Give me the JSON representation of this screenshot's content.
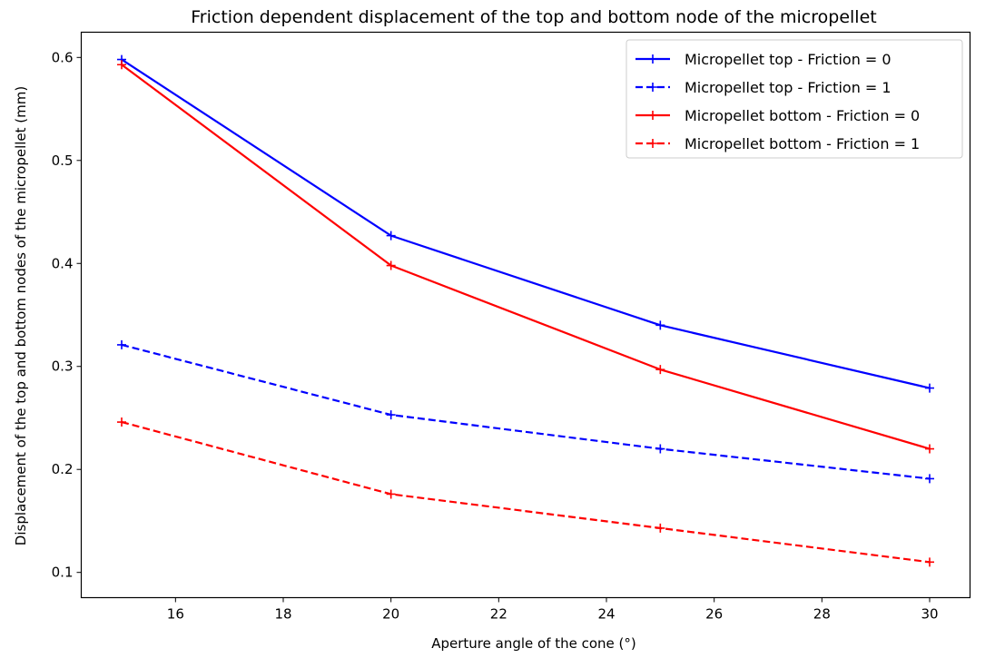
{
  "chart_data": {
    "type": "line",
    "title": "Friction dependent displacement of the top and bottom node of the micropellet",
    "xlabel": "Aperture angle of the cone (°)",
    "ylabel": "Displacement of the top and bottom nodes of the micropellet (mm)",
    "x": [
      15,
      20,
      25,
      30
    ],
    "xlim": [
      14.25,
      30.75
    ],
    "ylim": [
      0.0755,
      0.6245
    ],
    "xticks": [
      "16",
      "18",
      "20",
      "22",
      "24",
      "26",
      "28",
      "30"
    ],
    "yticks": [
      "0.1",
      "0.2",
      "0.3",
      "0.4",
      "0.5",
      "0.6"
    ],
    "grid": false,
    "legend_position": "top-right",
    "marker": "+",
    "series": [
      {
        "name": "Micropellet top - Friction = 0",
        "color": "#0000ff",
        "linestyle": "solid",
        "values": [
          0.598,
          0.427,
          0.34,
          0.279
        ]
      },
      {
        "name": "Micropellet top - Friction = 1",
        "color": "#0000ff",
        "linestyle": "dashed",
        "values": [
          0.321,
          0.253,
          0.22,
          0.191
        ]
      },
      {
        "name": "Micropellet bottom - Friction = 0",
        "color": "#ff0000",
        "linestyle": "solid",
        "values": [
          0.593,
          0.398,
          0.297,
          0.22
        ]
      },
      {
        "name": "Micropellet bottom - Friction = 1",
        "color": "#ff0000",
        "linestyle": "dashed",
        "values": [
          0.246,
          0.176,
          0.143,
          0.11
        ]
      }
    ]
  }
}
